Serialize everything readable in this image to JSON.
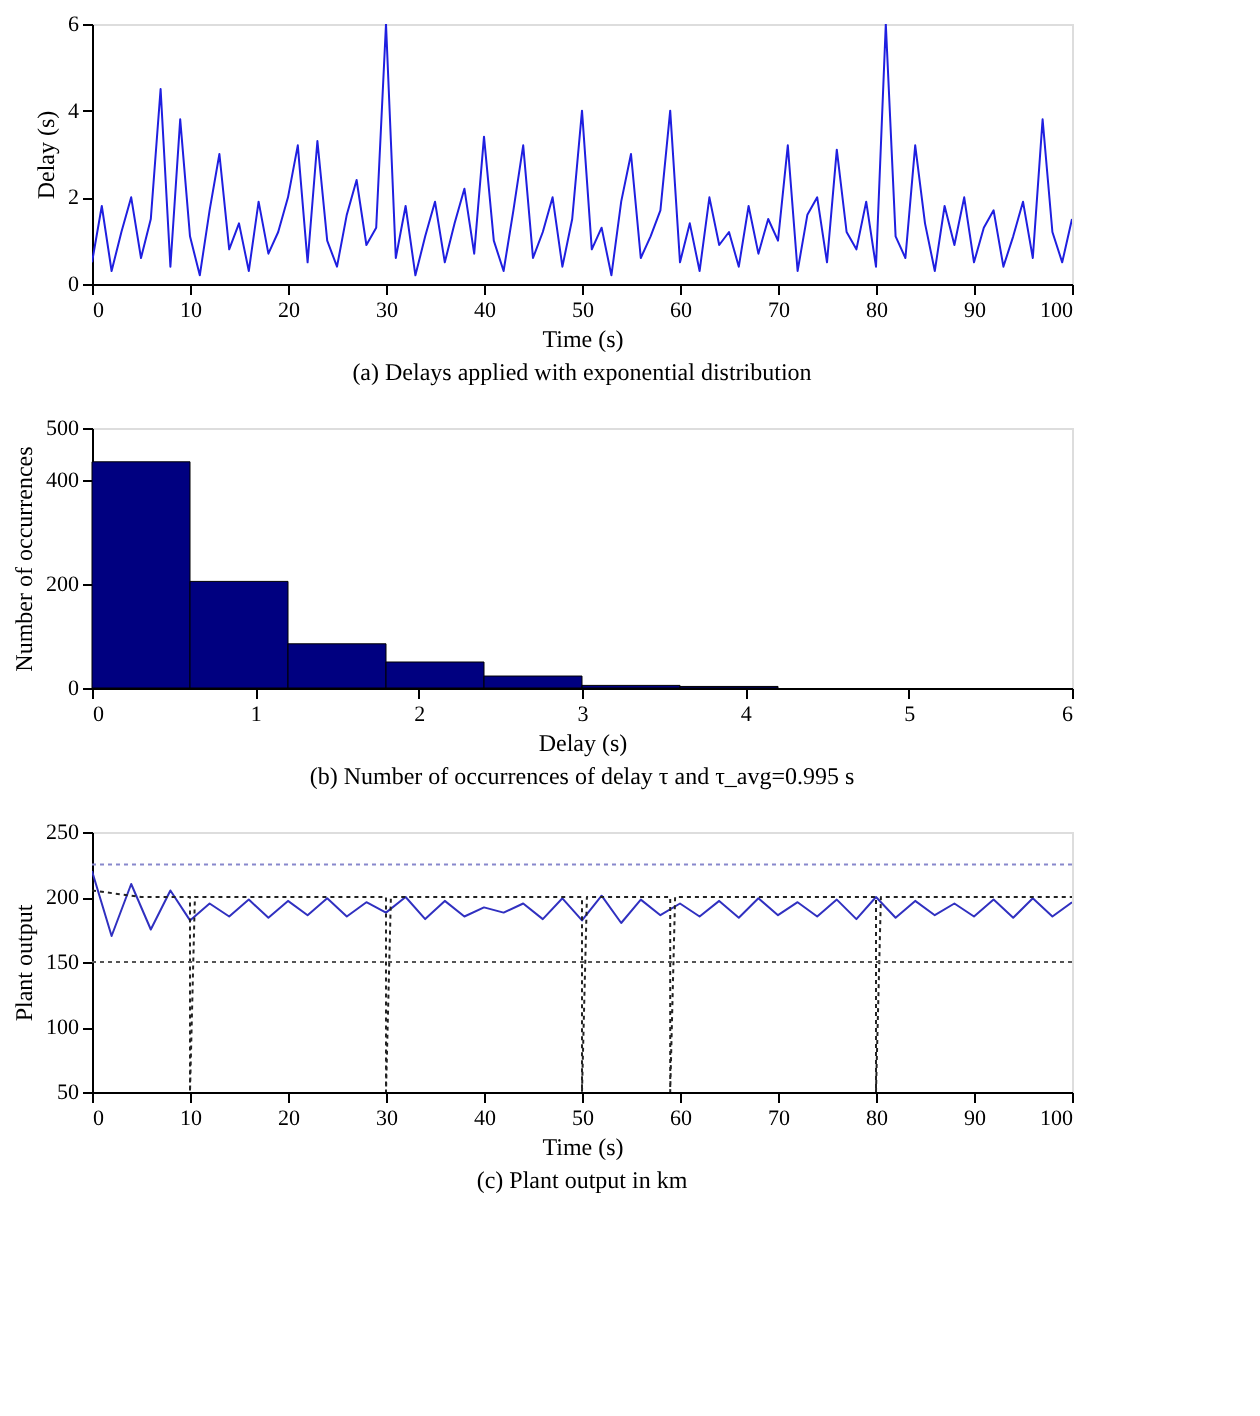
{
  "chart_data": [
    {
      "type": "line",
      "title": "(a) Delays applied with exponential distribution",
      "xlabel": "Time (s)",
      "ylabel": "Delay (s)",
      "xlim": [
        0,
        100
      ],
      "ylim": [
        0,
        6
      ],
      "xticks": [
        0,
        10,
        20,
        30,
        40,
        50,
        60,
        70,
        80,
        90,
        100
      ],
      "yticks": [
        0,
        2,
        4,
        6
      ],
      "grid": false,
      "x": [
        0,
        1,
        2,
        3,
        4,
        5,
        6,
        7,
        8,
        9,
        10,
        11,
        12,
        13,
        14,
        15,
        16,
        17,
        18,
        19,
        20,
        21,
        22,
        23,
        24,
        25,
        26,
        27,
        28,
        29,
        30,
        31,
        32,
        33,
        34,
        35,
        36,
        37,
        38,
        39,
        40,
        41,
        42,
        43,
        44,
        45,
        46,
        47,
        48,
        49,
        50,
        51,
        52,
        53,
        54,
        55,
        56,
        57,
        58,
        59,
        60,
        61,
        62,
        63,
        64,
        65,
        66,
        67,
        68,
        69,
        70,
        71,
        72,
        73,
        74,
        75,
        76,
        77,
        78,
        79,
        80,
        81,
        82,
        83,
        84,
        85,
        86,
        87,
        88,
        89,
        90,
        91,
        92,
        93,
        94,
        95,
        96,
        97,
        98,
        99,
        100
      ],
      "series": [
        {
          "color": "#1f1fe0",
          "values": [
            0.5,
            1.8,
            0.3,
            1.2,
            2.0,
            0.6,
            1.5,
            4.5,
            0.4,
            3.8,
            1.1,
            0.2,
            1.7,
            3.0,
            0.8,
            1.4,
            0.3,
            1.9,
            0.7,
            1.2,
            2.0,
            3.2,
            0.5,
            3.3,
            1.0,
            0.4,
            1.6,
            2.4,
            0.9,
            1.3,
            6.0,
            0.6,
            1.8,
            0.2,
            1.1,
            1.9,
            0.5,
            1.4,
            2.2,
            0.7,
            3.4,
            1.0,
            0.3,
            1.7,
            3.2,
            0.6,
            1.2,
            2.0,
            0.4,
            1.5,
            4.0,
            0.8,
            1.3,
            0.2,
            1.9,
            3.0,
            0.6,
            1.1,
            1.7,
            4.0,
            0.5,
            1.4,
            0.3,
            2.0,
            0.9,
            1.2,
            0.4,
            1.8,
            0.7,
            1.5,
            1.0,
            3.2,
            0.3,
            1.6,
            2.0,
            0.5,
            3.1,
            1.2,
            0.8,
            1.9,
            0.4,
            6.0,
            1.1,
            0.6,
            3.2,
            1.4,
            0.3,
            1.8,
            0.9,
            2.0,
            0.5,
            1.3,
            1.7,
            0.4,
            1.1,
            1.9,
            0.6,
            3.8,
            1.2,
            0.5,
            1.5
          ]
        }
      ]
    },
    {
      "type": "histogram",
      "title": "(b) Number of occurrences of delay τ and τ_avg=0.995 s",
      "xlabel": "Delay (s)",
      "ylabel": "Number of occurrences",
      "xlim": [
        0,
        6
      ],
      "ylim": [
        0,
        500
      ],
      "xticks": [
        0,
        1,
        2,
        3,
        4,
        5,
        6
      ],
      "yticks": [
        0,
        200,
        400,
        500
      ],
      "grid": false,
      "color": "#000080",
      "bins": [
        0,
        0.6,
        1.2,
        1.8,
        2.4,
        3.0,
        3.6,
        4.2
      ],
      "values": [
        435,
        205,
        85,
        50,
        23,
        5,
        3
      ]
    },
    {
      "type": "line",
      "title": "(c) Plant output in km",
      "xlabel": "Time (s)",
      "ylabel": "Plant output",
      "xlim": [
        0,
        100
      ],
      "ylim": [
        50,
        250
      ],
      "xticks": [
        0,
        10,
        20,
        30,
        40,
        50,
        60,
        70,
        80,
        90,
        100
      ],
      "yticks": [
        50,
        100,
        150,
        200,
        250
      ],
      "grid": false,
      "ref_lines": [
        {
          "axis": "y",
          "value": 225,
          "color": "#8888cc",
          "line_style": "dotted"
        },
        {
          "axis": "y",
          "value": 150,
          "color": "#555555",
          "line_style": "dotted"
        }
      ],
      "series": [
        {
          "color": "#3030c0",
          "line_style": "solid",
          "x": [
            0,
            2,
            4,
            6,
            8,
            10,
            12,
            14,
            16,
            18,
            20,
            22,
            24,
            26,
            28,
            30,
            32,
            34,
            36,
            38,
            40,
            42,
            44,
            46,
            48,
            50,
            52,
            54,
            56,
            58,
            60,
            62,
            64,
            66,
            68,
            70,
            72,
            74,
            76,
            78,
            80,
            82,
            84,
            86,
            88,
            90,
            92,
            94,
            96,
            98,
            100
          ],
          "values": [
            220,
            170,
            210,
            175,
            205,
            182,
            195,
            185,
            198,
            184,
            197,
            186,
            199,
            185,
            196,
            188,
            200,
            183,
            197,
            185,
            192,
            188,
            195,
            183,
            199,
            182,
            201,
            180,
            198,
            186,
            195,
            185,
            197,
            184,
            199,
            186,
            196,
            185,
            198,
            183,
            200,
            184,
            197,
            186,
            195,
            185,
            198,
            184,
            199,
            185,
            196
          ]
        },
        {
          "color": "#222222",
          "line_style": "dotted",
          "x": [
            0,
            5,
            10,
            10,
            10.5,
            15,
            20,
            25,
            30,
            30,
            30.5,
            35,
            40,
            45,
            50,
            50,
            50.5,
            55,
            59,
            59,
            59.5,
            65,
            70,
            75,
            80,
            80,
            80.5,
            85,
            90,
            95,
            100
          ],
          "values": [
            205,
            200,
            200,
            50,
            200,
            200,
            200,
            200,
            200,
            50,
            200,
            200,
            200,
            200,
            200,
            50,
            200,
            200,
            200,
            50,
            200,
            200,
            200,
            200,
            200,
            50,
            200,
            200,
            200,
            200,
            200
          ]
        }
      ]
    }
  ]
}
